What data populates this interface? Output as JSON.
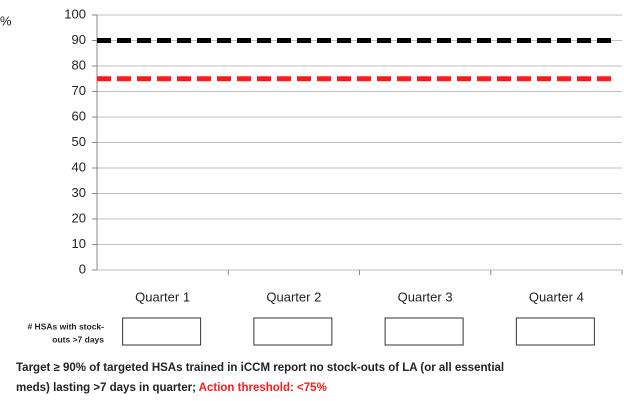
{
  "chart_data": {
    "type": "reference",
    "y_label": "%",
    "categories": [
      "Quarter 1",
      "Quarter 2",
      "Quarter 3",
      "Quarter 4"
    ],
    "ylim": [
      0,
      100
    ],
    "yticks": [
      0,
      10,
      20,
      30,
      40,
      50,
      60,
      70,
      80,
      90,
      100
    ],
    "grid": true,
    "reference_lines": [
      {
        "value": 90,
        "color": "#000000"
      },
      {
        "value": 75,
        "color": "#ff1a1a"
      }
    ],
    "table_row_label": [
      "# HSAs with stock-",
      "outs >7 days"
    ],
    "footer": {
      "line1": "Target ≥ 90% of targeted HSAs trained in iCCM report no stock-outs of LA (or all essential",
      "line2": "meds) lasting >7 days in quarter; ",
      "line2_highlight": "Action threshold: <75%",
      "highlight_color": "#ff1a1a"
    }
  }
}
